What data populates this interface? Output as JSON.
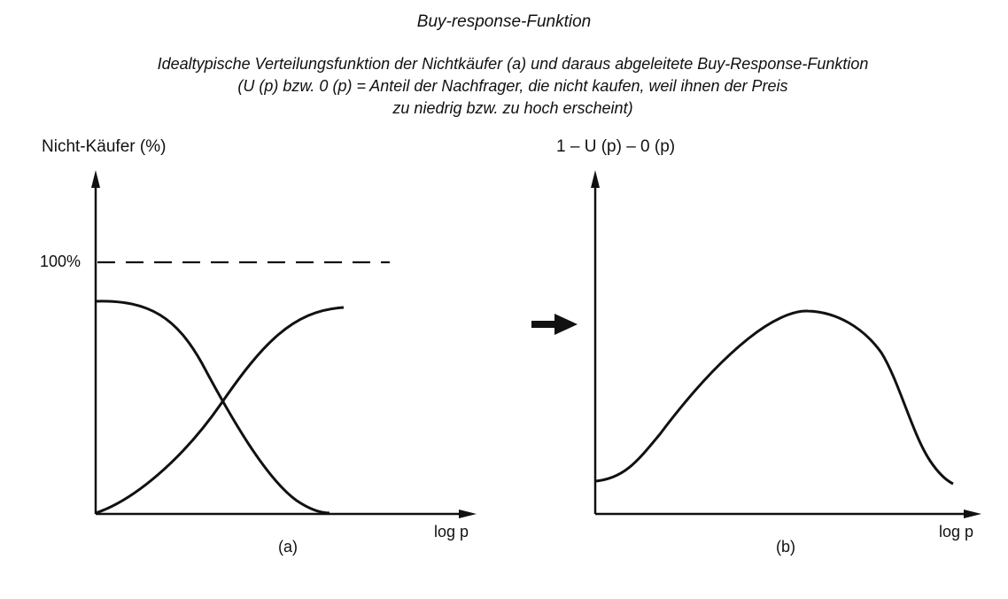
{
  "title": "Buy-response-Funktion",
  "subtitle_lines": [
    "Idealtypische Verteilungsfunktion der Nichtkäufer (a) und daraus abgeleitete Buy-Response-Funktion",
    "(U (p) bzw. 0 (p) = Anteil der Nachfrager, die nicht kaufen, weil ihnen der Preis",
    "zu niedrig bzw. zu hoch erscheint)"
  ],
  "panel_a": {
    "ylabel": "Nicht-Käufer (%)",
    "reference_label": "100%",
    "xlabel": "log p",
    "panel_label": "(a)"
  },
  "panel_b": {
    "ylabel": "1 – U (p) – 0 (p)",
    "xlabel": "log p",
    "panel_label": "(b)"
  },
  "colors": {
    "ink": "#111111",
    "background": "#ffffff"
  },
  "icons": {
    "transition": "right-arrow-icon"
  }
}
